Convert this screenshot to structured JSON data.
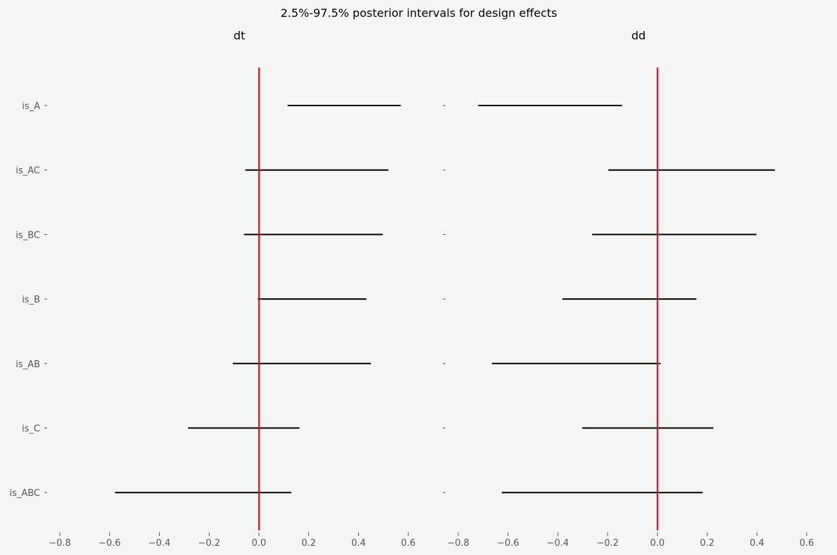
{
  "chart_data": {
    "type": "interval",
    "title": "2.5%-97.5% posterior intervals for design effects",
    "categories": [
      "is_A",
      "is_AC",
      "is_BC",
      "is_B",
      "is_AB",
      "is_C",
      "is_ABC"
    ],
    "xlim": [
      -0.8,
      0.6
    ],
    "xticks": [
      -0.8,
      -0.6,
      -0.4,
      -0.2,
      0.0,
      0.2,
      0.4,
      0.6
    ],
    "xtick_labels": [
      "−0.8",
      "−0.6",
      "−0.4",
      "−0.2",
      "0.0",
      "0.2",
      "0.4",
      "0.6"
    ],
    "reference_line": {
      "x": 0.0,
      "color": "#e8000b"
    },
    "interval_color": "#000000",
    "grid": false,
    "panels": [
      {
        "title": "dt",
        "intervals": [
          {
            "label": "is_A",
            "low": 0.115,
            "high": 0.57
          },
          {
            "label": "is_AC",
            "low": -0.055,
            "high": 0.52
          },
          {
            "label": "is_BC",
            "low": -0.06,
            "high": 0.497
          },
          {
            "label": "is_B",
            "low": -0.005,
            "high": 0.432
          },
          {
            "label": "is_AB",
            "low": -0.105,
            "high": 0.45
          },
          {
            "label": "is_C",
            "low": -0.285,
            "high": 0.163
          },
          {
            "label": "is_ABC",
            "low": -0.578,
            "high": 0.13
          }
        ]
      },
      {
        "title": "dd",
        "intervals": [
          {
            "label": "is_A",
            "low": -0.72,
            "high": -0.142
          },
          {
            "label": "is_AC",
            "low": -0.197,
            "high": 0.472
          },
          {
            "label": "is_BC",
            "low": -0.262,
            "high": 0.398
          },
          {
            "label": "is_B",
            "low": -0.382,
            "high": 0.157
          },
          {
            "label": "is_AB",
            "low": -0.665,
            "high": 0.013
          },
          {
            "label": "is_C",
            "low": -0.302,
            "high": 0.225
          },
          {
            "label": "is_ABC",
            "low": -0.625,
            "high": 0.182
          }
        ]
      }
    ]
  }
}
